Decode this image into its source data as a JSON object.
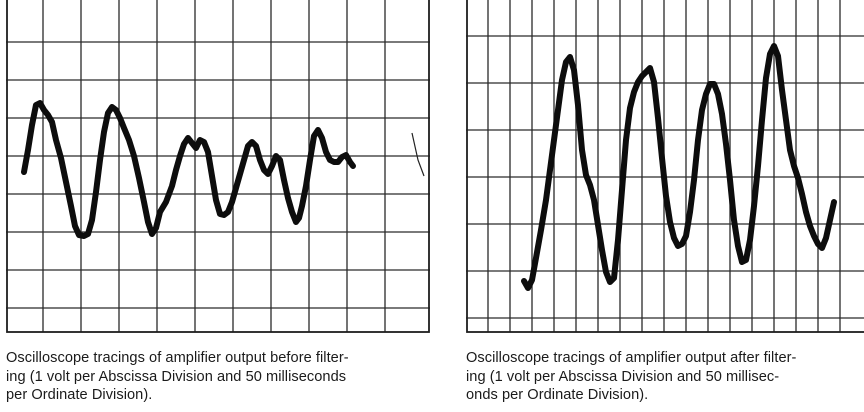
{
  "figures": [
    {
      "id": "before",
      "caption_lines": [
        "Oscilloscope tracings of amplifier output before filter-",
        "ing (1 volt per Abscissa Division and 50 milliseconds",
        "per Ordinate Division)."
      ]
    },
    {
      "id": "after",
      "caption_lines": [
        "Oscilloscope tracings of amplifier output after filter-",
        "ing (1 volt per Abscissa Division and 50 millisec-",
        "onds per Ordinate Division)."
      ]
    }
  ]
}
